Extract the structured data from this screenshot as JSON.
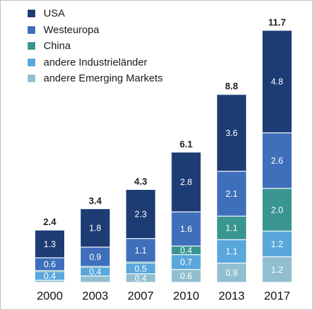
{
  "chart_data": {
    "type": "bar",
    "stacked": true,
    "categories": [
      "2000",
      "2003",
      "2007",
      "2010",
      "2013",
      "2017"
    ],
    "totals": [
      "2.4",
      "3.4",
      "4.3",
      "6.1",
      "8.8",
      "11.7"
    ],
    "series": [
      {
        "name": "andere Emerging Markets",
        "color": "#92bfcf",
        "values": [
          0.1,
          0.3,
          0.4,
          0.6,
          0.9,
          1.2
        ],
        "labels": [
          "",
          "",
          "0.4",
          "0.6",
          "0.9",
          "1.2"
        ]
      },
      {
        "name": "andere Industrieländer",
        "color": "#5aa7dc",
        "values": [
          0.4,
          0.4,
          0.5,
          0.7,
          1.1,
          1.2
        ],
        "labels": [
          "0.4",
          "0.4",
          "0.5",
          "0.7",
          "1.1",
          "1.2"
        ]
      },
      {
        "name": "China",
        "color": "#38958f",
        "values": [
          0.05,
          0.05,
          0.05,
          0.4,
          1.1,
          2.0
        ],
        "labels": [
          "",
          "",
          "",
          "0.4",
          "1.1",
          "2.0"
        ]
      },
      {
        "name": "Westeuropa",
        "color": "#3f6fba",
        "values": [
          0.6,
          0.9,
          1.1,
          1.6,
          2.1,
          2.6
        ],
        "labels": [
          "0.6",
          "0.9",
          "1.1",
          "1.6",
          "2.1",
          "2.6"
        ]
      },
      {
        "name": "USA",
        "color": "#1e3c74",
        "values": [
          1.3,
          1.8,
          2.3,
          2.8,
          3.6,
          4.8
        ],
        "labels": [
          "1.3",
          "1.8",
          "2.3",
          "2.8",
          "3.6",
          "4.8"
        ]
      }
    ],
    "ylim": [
      0,
      11.7
    ],
    "grid": false,
    "legend_position": "top-left"
  },
  "legend": [
    {
      "label": "USA",
      "color": "#1e3c74"
    },
    {
      "label": "Westeuropa",
      "color": "#3f6fba"
    },
    {
      "label": "China",
      "color": "#38958f"
    },
    {
      "label": "andere Industrieländer",
      "color": "#5aa7dc"
    },
    {
      "label": "andere Emerging Markets",
      "color": "#92bfcf"
    }
  ]
}
